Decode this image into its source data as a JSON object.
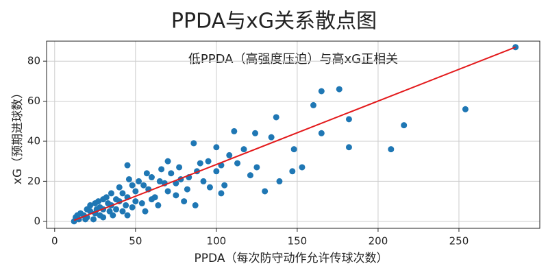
{
  "chart_data": {
    "type": "scatter",
    "title": "PPDA与xG关系散点图",
    "annotation": "低PPDA（高强度压迫）与高xG正相关",
    "x_label": "PPDA（每次防守动作允许传球次数）",
    "y_label": "xG（预期进球数）",
    "series": [
      {
        "color": "#1f77b4",
        "x": [
          285,
          176,
          165,
          160,
          137,
          254,
          182,
          216,
          111,
          124,
          165,
          134,
          148,
          182,
          208,
          86,
          100,
          117,
          153,
          147,
          139,
          130,
          121,
          125,
          103,
          95,
          90,
          77,
          45,
          108,
          113,
          100,
          105,
          96,
          103,
          87,
          80,
          75,
          70,
          65,
          60,
          55,
          50,
          45,
          40,
          35,
          30,
          25,
          20,
          15,
          12,
          18,
          22,
          28,
          33,
          38,
          42,
          48,
          52,
          58,
          62,
          68,
          72,
          78,
          83,
          88,
          92,
          82,
          75,
          66,
          70,
          57,
          46,
          40,
          35,
          30,
          25,
          20,
          16,
          13,
          24,
          30,
          36,
          42,
          48,
          54,
          60,
          64,
          56,
          45,
          38,
          28,
          22,
          32,
          27,
          50,
          44,
          34,
          26,
          19,
          14
        ],
        "y": [
          87,
          66,
          65,
          58,
          52,
          56,
          51,
          48,
          45,
          44,
          44,
          42,
          36,
          37,
          36,
          39,
          37,
          36,
          27,
          25,
          20,
          15,
          23,
          27,
          28,
          30,
          29,
          27,
          28,
          33,
          29,
          25,
          18,
          17,
          14,
          8,
          10,
          13,
          15,
          20,
          22,
          18,
          15,
          12,
          10,
          8,
          6,
          4,
          2,
          1,
          0,
          3,
          5,
          7,
          9,
          11,
          14,
          18,
          20,
          16,
          12,
          19,
          24,
          21,
          22,
          25,
          20,
          16,
          19,
          26,
          30,
          24,
          21,
          17,
          14,
          11,
          9,
          6,
          4,
          2,
          1,
          2,
          3,
          5,
          7,
          9,
          11,
          8,
          5,
          3,
          6,
          3,
          8,
          12,
          10,
          10,
          8,
          5,
          6,
          1,
          3
        ]
      }
    ],
    "trend_line": {
      "color": "#e31a1c",
      "x": [
        12,
        285
      ],
      "y": [
        0.5,
        87
      ]
    },
    "xlim": [
      -5,
      300
    ],
    "ylim": [
      -3.5,
      90
    ],
    "xticks": [
      0,
      50,
      100,
      150,
      200,
      250
    ],
    "yticks": [
      0,
      20,
      40,
      60,
      80
    ],
    "grid": true
  }
}
